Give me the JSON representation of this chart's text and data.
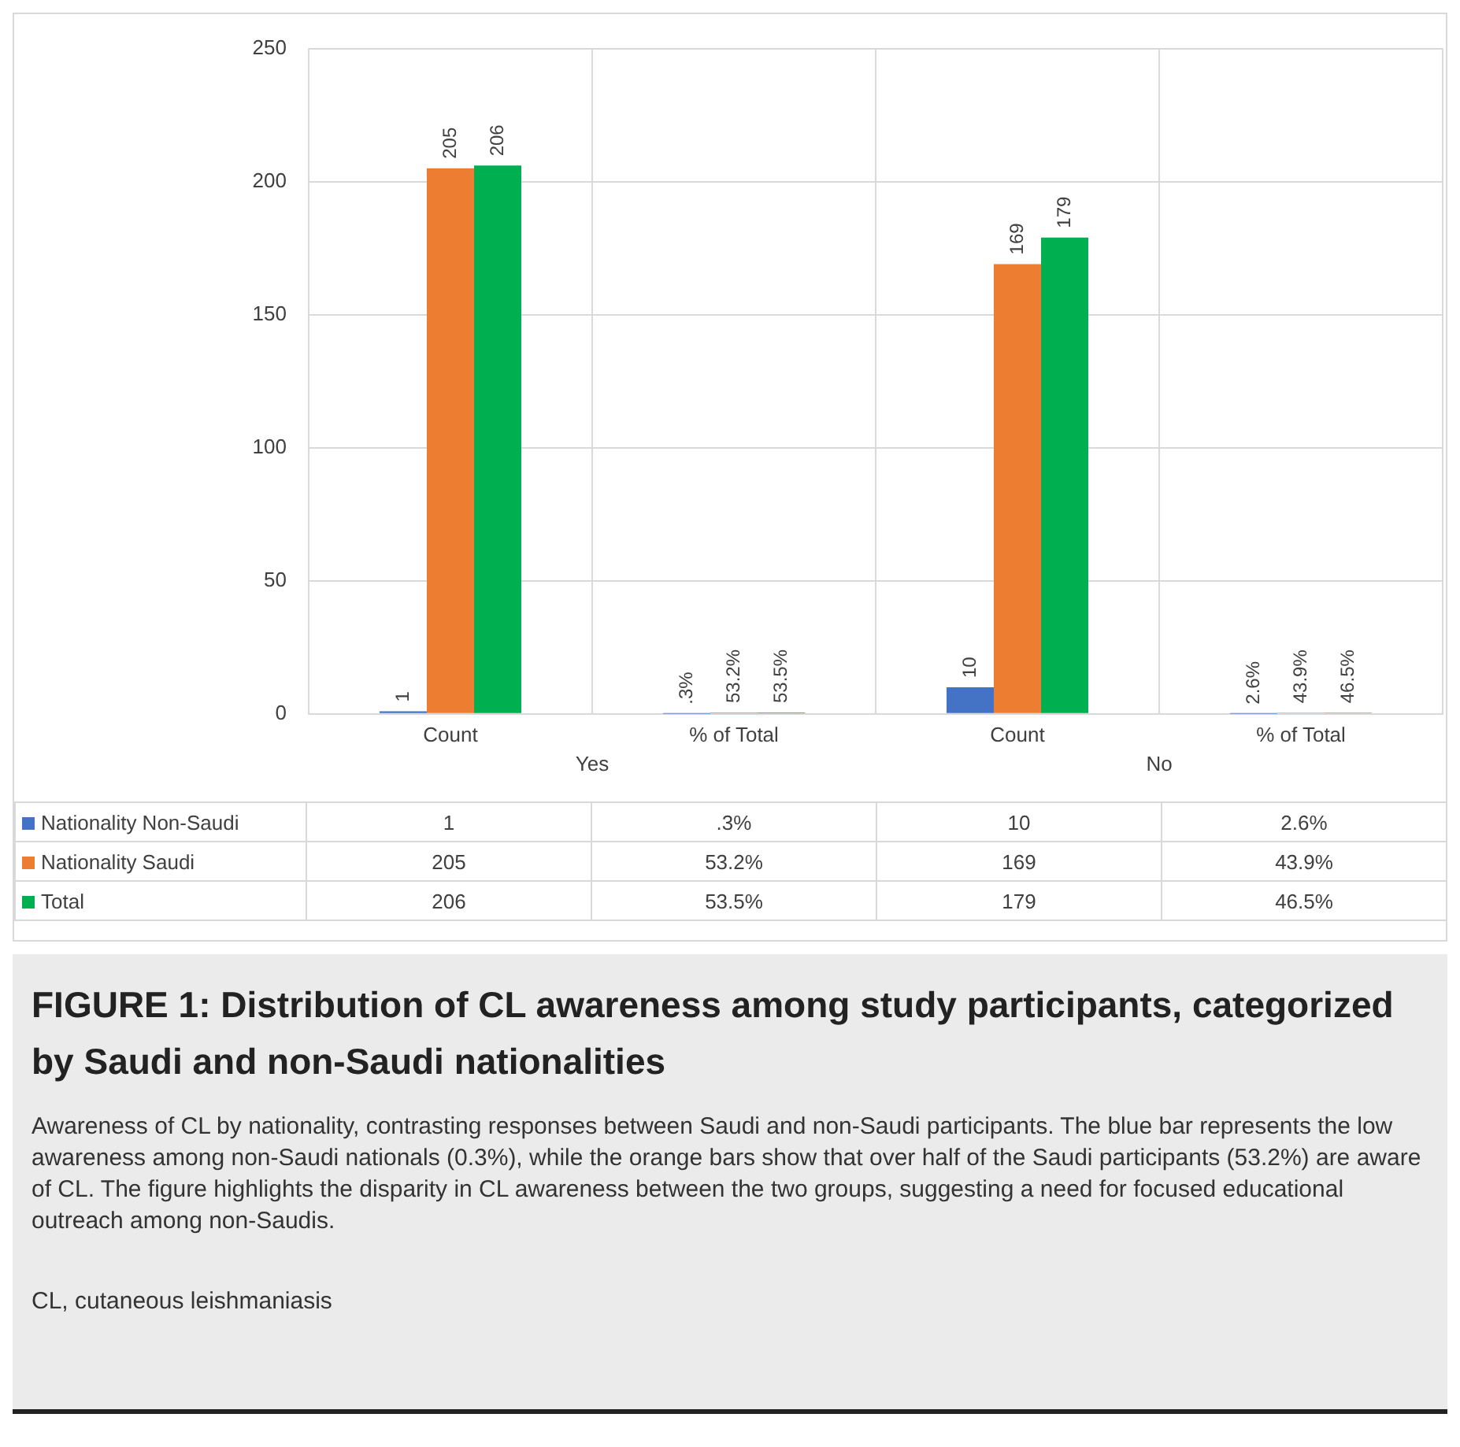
{
  "chart_data": {
    "type": "bar",
    "title": "FIGURE 1: Distribution of CL awareness among study participants, categorized by Saudi and non-Saudi nationalities",
    "subtitle": "Awareness of CL by nationality, contrasting responses between Saudi and non-Saudi participants. The blue bar represents the low awareness among non-Saudi nationals (0.3%), while the orange bars show that over half of the Saudi participants (53.2%) are aware of CL. The figure highlights the disparity in CL awareness between the two groups, suggesting a need for focused educational outreach among non-Saudis.",
    "categories": [
      "Count",
      "% of Total",
      "Count",
      "% of Total"
    ],
    "annotations": [
      "Yes",
      "No",
      "CL, cutaneous leishmaniasis"
    ],
    "series": [
      {
        "name": "Nationality Non-Saudi",
        "color": "#4472c4",
        "values": [
          1,
          0.003,
          10,
          0.026
        ],
        "value_labels": [
          "1",
          ".3%",
          "10",
          "2.6%"
        ]
      },
      {
        "name": "Nationality Saudi",
        "color": "#ed7d31",
        "values": [
          205,
          0.532,
          169,
          0.439
        ],
        "value_labels": [
          "205",
          "53.2%",
          "169",
          "43.9%"
        ]
      },
      {
        "name": "Total",
        "color": "#00b050",
        "values": [
          206,
          0.535,
          179,
          0.465
        ],
        "value_labels": [
          "206",
          "53.5%",
          "179",
          "46.5%"
        ]
      }
    ],
    "ylim": [
      0,
      250
    ],
    "yticks": [
      0,
      50,
      100,
      150,
      200,
      250
    ],
    "grid": true,
    "legend": "bottom"
  }
}
